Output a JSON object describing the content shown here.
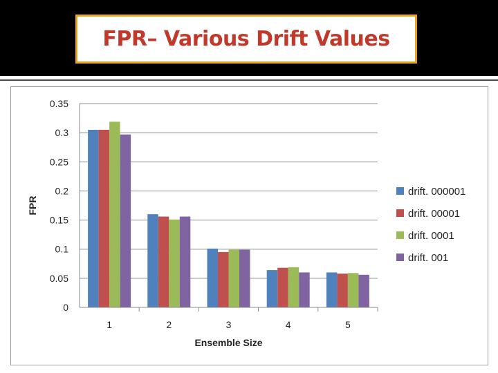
{
  "slide": {
    "title": "FPR– Various Drift Values"
  },
  "chart_data": {
    "type": "bar",
    "title": "",
    "xlabel": "Ensemble Size",
    "ylabel": "FPR",
    "categories": [
      "1",
      "2",
      "3",
      "4",
      "5"
    ],
    "ylim": [
      0,
      0.35
    ],
    "yticks": [
      "0",
      "0.05",
      "0.1",
      "0.15",
      "0.2",
      "0.25",
      "0.3",
      "0.35"
    ],
    "grid": true,
    "legend_position": "right",
    "series": [
      {
        "name": "drift. 000001",
        "color": "#4f81bd",
        "values": [
          0.305,
          0.16,
          0.101,
          0.064,
          0.06
        ]
      },
      {
        "name": "drift. 00001",
        "color": "#c0504d",
        "values": [
          0.305,
          0.156,
          0.095,
          0.068,
          0.058
        ]
      },
      {
        "name": "drift. 0001",
        "color": "#9bbb59",
        "values": [
          0.319,
          0.151,
          0.099,
          0.069,
          0.059
        ]
      },
      {
        "name": "drift. 001",
        "color": "#8064a2",
        "values": [
          0.297,
          0.156,
          0.099,
          0.06,
          0.056
        ]
      }
    ]
  }
}
